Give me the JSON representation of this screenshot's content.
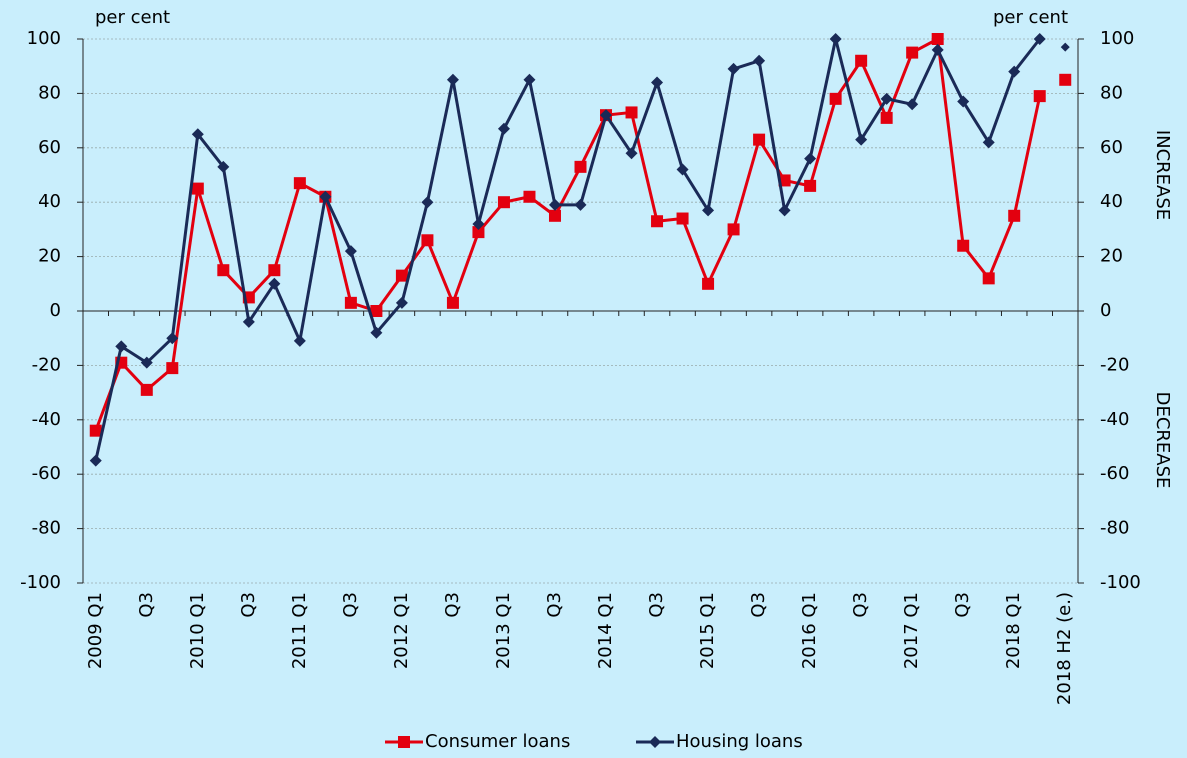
{
  "chart_data": {
    "type": "line",
    "y_label": "per cent",
    "y2_label": "per cent",
    "annotations": [
      "INCREASE",
      "DECREASE"
    ],
    "categories": [
      "2009 Q1",
      null,
      "Q3",
      null,
      "2010 Q1",
      null,
      "Q3",
      null,
      "2011 Q1",
      null,
      "Q3",
      null,
      "2012 Q1",
      null,
      "Q3",
      null,
      "2013 Q1",
      null,
      "Q3",
      null,
      "2014 Q1",
      null,
      "Q3",
      null,
      "2015 Q1",
      null,
      "Q3",
      null,
      "2016 Q1",
      null,
      "Q3",
      null,
      "2017 Q1",
      null,
      "Q3",
      null,
      "2018 Q1",
      null,
      "2018 H2 (e.)"
    ],
    "series": [
      {
        "name": "Consumer loans",
        "color": "#e3000f",
        "marker": "square",
        "values": [
          -44,
          -19,
          -29,
          -21,
          45,
          15,
          5,
          15,
          47,
          42,
          3,
          0,
          13,
          26,
          3,
          29,
          40,
          42,
          35,
          53,
          72,
          73,
          33,
          34,
          10,
          30,
          63,
          48,
          46,
          78,
          92,
          71,
          95,
          100,
          24,
          12,
          35,
          79,
          85
        ]
      },
      {
        "name": "Housing loans",
        "color": "#1a2a57",
        "marker": "diamond",
        "values": [
          -55,
          -13,
          -19,
          -10,
          65,
          53,
          -4,
          10,
          -11,
          42,
          22,
          -8,
          3,
          40,
          85,
          32,
          67,
          85,
          39,
          39,
          72,
          58,
          84,
          52,
          37,
          89,
          92,
          37,
          56,
          100,
          63,
          78,
          76,
          96,
          77,
          62,
          88,
          100,
          97
        ]
      }
    ],
    "ylim": [
      -100,
      100
    ],
    "yticks": [
      -100,
      -80,
      -60,
      -40,
      -20,
      0,
      20,
      40,
      60,
      80,
      100
    ],
    "y2lim": [
      -100,
      100
    ],
    "y2ticks": [
      -100,
      -80,
      -60,
      -40,
      -20,
      0,
      20,
      40,
      60,
      80,
      100
    ],
    "grid": true
  }
}
